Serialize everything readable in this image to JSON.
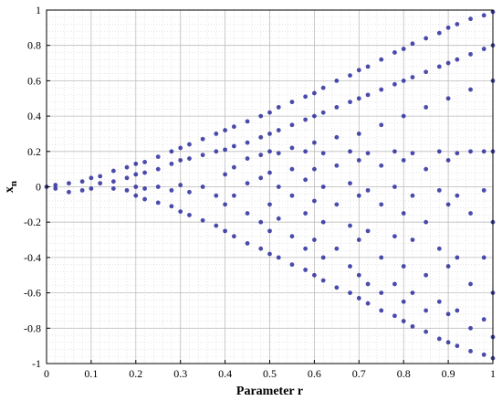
{
  "chart_data": {
    "type": "scatter",
    "title": "",
    "xlabel": "Parameter r",
    "ylabel_main": "x",
    "ylabel_sub": "n",
    "xlim": [
      0,
      1
    ],
    "ylim": [
      -1,
      1
    ],
    "x_ticks": [
      0,
      0.1,
      0.2,
      0.3,
      0.4,
      0.5,
      0.6,
      0.7,
      0.8,
      0.9,
      1
    ],
    "x_tick_labels": [
      "0",
      "0.1",
      "0.2",
      "0.3",
      "0.4",
      "0.5",
      "0.6",
      "0.7",
      "0.8",
      "0.9",
      "1"
    ],
    "y_ticks": [
      -1,
      -0.8,
      -0.6,
      -0.4,
      -0.2,
      0,
      0.2,
      0.4,
      0.6,
      0.8,
      1
    ],
    "y_tick_labels": [
      "-1",
      "-0.8",
      "-0.6",
      "-0.4",
      "-0.2",
      "0",
      "0.2",
      "0.4",
      "0.6",
      "0.8",
      "1"
    ],
    "grid": true,
    "minor_grid": true,
    "marker_color": "#2b2b9e",
    "series": [
      {
        "values": [
          [
            0.0,
            0.0
          ],
          [
            0.02,
            0.01
          ],
          [
            0.02,
            -0.01
          ],
          [
            0.05,
            0.02
          ],
          [
            0.05,
            -0.03
          ],
          [
            0.08,
            0.03
          ],
          [
            0.08,
            -0.02
          ],
          [
            0.1,
            0.05
          ],
          [
            0.1,
            -0.01
          ],
          [
            0.12,
            0.06
          ],
          [
            0.12,
            0.02
          ],
          [
            0.15,
            0.09
          ],
          [
            0.15,
            0.03
          ],
          [
            0.15,
            -0.01
          ],
          [
            0.18,
            0.11
          ],
          [
            0.18,
            0.05
          ],
          [
            0.18,
            -0.02
          ],
          [
            0.2,
            0.13
          ],
          [
            0.2,
            0.07
          ],
          [
            0.2,
            0.0
          ],
          [
            0.2,
            -0.05
          ],
          [
            0.22,
            0.14
          ],
          [
            0.22,
            0.08
          ],
          [
            0.22,
            -0.01
          ],
          [
            0.22,
            -0.07
          ],
          [
            0.25,
            0.17
          ],
          [
            0.25,
            0.1
          ],
          [
            0.25,
            0.0
          ],
          [
            0.25,
            -0.09
          ],
          [
            0.28,
            0.2
          ],
          [
            0.28,
            0.13
          ],
          [
            0.28,
            -0.02
          ],
          [
            0.28,
            -0.11
          ],
          [
            0.3,
            0.22
          ],
          [
            0.3,
            0.15
          ],
          [
            0.3,
            0.01
          ],
          [
            0.3,
            -0.14
          ],
          [
            0.32,
            0.24
          ],
          [
            0.32,
            0.16
          ],
          [
            0.32,
            -0.03
          ],
          [
            0.32,
            -0.16
          ],
          [
            0.35,
            0.27
          ],
          [
            0.35,
            0.18
          ],
          [
            0.35,
            0.0
          ],
          [
            0.35,
            -0.19
          ],
          [
            0.38,
            0.3
          ],
          [
            0.38,
            0.2
          ],
          [
            0.38,
            -0.05
          ],
          [
            0.38,
            -0.22
          ],
          [
            0.4,
            0.32
          ],
          [
            0.4,
            0.21
          ],
          [
            0.4,
            0.07
          ],
          [
            0.4,
            -0.1
          ],
          [
            0.4,
            -0.25
          ],
          [
            0.42,
            0.34
          ],
          [
            0.42,
            0.23
          ],
          [
            0.42,
            0.11
          ],
          [
            0.42,
            -0.05
          ],
          [
            0.42,
            -0.28
          ],
          [
            0.45,
            0.37
          ],
          [
            0.45,
            0.25
          ],
          [
            0.45,
            0.16
          ],
          [
            0.45,
            0.02
          ],
          [
            0.45,
            -0.15
          ],
          [
            0.45,
            -0.32
          ],
          [
            0.48,
            0.4
          ],
          [
            0.48,
            0.28
          ],
          [
            0.48,
            0.18
          ],
          [
            0.48,
            0.05
          ],
          [
            0.48,
            -0.2
          ],
          [
            0.48,
            -0.35
          ],
          [
            0.5,
            0.42
          ],
          [
            0.5,
            0.3
          ],
          [
            0.5,
            0.2
          ],
          [
            0.5,
            0.08
          ],
          [
            0.5,
            -0.1
          ],
          [
            0.5,
            -0.25
          ],
          [
            0.5,
            -0.38
          ],
          [
            0.52,
            0.45
          ],
          [
            0.52,
            0.32
          ],
          [
            0.52,
            0.19
          ],
          [
            0.52,
            0.0
          ],
          [
            0.52,
            -0.18
          ],
          [
            0.52,
            -0.4
          ],
          [
            0.55,
            0.48
          ],
          [
            0.55,
            0.35
          ],
          [
            0.55,
            0.22
          ],
          [
            0.55,
            0.1
          ],
          [
            0.55,
            -0.05
          ],
          [
            0.55,
            -0.28
          ],
          [
            0.55,
            -0.44
          ],
          [
            0.58,
            0.51
          ],
          [
            0.58,
            0.38
          ],
          [
            0.58,
            0.2
          ],
          [
            0.58,
            0.04
          ],
          [
            0.58,
            -0.15
          ],
          [
            0.58,
            -0.35
          ],
          [
            0.58,
            -0.47
          ],
          [
            0.6,
            0.53
          ],
          [
            0.6,
            0.4
          ],
          [
            0.6,
            0.25
          ],
          [
            0.6,
            0.1
          ],
          [
            0.6,
            -0.08
          ],
          [
            0.6,
            -0.3
          ],
          [
            0.6,
            -0.5
          ],
          [
            0.62,
            0.56
          ],
          [
            0.62,
            0.42
          ],
          [
            0.62,
            0.19
          ],
          [
            0.62,
            0.0
          ],
          [
            0.62,
            -0.2
          ],
          [
            0.62,
            -0.4
          ],
          [
            0.62,
            -0.53
          ],
          [
            0.65,
            0.6
          ],
          [
            0.65,
            0.45
          ],
          [
            0.65,
            0.28
          ],
          [
            0.65,
            0.12
          ],
          [
            0.65,
            -0.1
          ],
          [
            0.65,
            -0.35
          ],
          [
            0.65,
            -0.57
          ],
          [
            0.68,
            0.63
          ],
          [
            0.68,
            0.48
          ],
          [
            0.68,
            0.2
          ],
          [
            0.68,
            0.02
          ],
          [
            0.68,
            -0.22
          ],
          [
            0.68,
            -0.45
          ],
          [
            0.68,
            -0.6
          ],
          [
            0.7,
            0.66
          ],
          [
            0.7,
            0.5
          ],
          [
            0.7,
            0.3
          ],
          [
            0.7,
            0.15
          ],
          [
            0.7,
            -0.05
          ],
          [
            0.7,
            -0.3
          ],
          [
            0.7,
            -0.5
          ],
          [
            0.7,
            -0.63
          ],
          [
            0.72,
            0.68
          ],
          [
            0.72,
            0.52
          ],
          [
            0.72,
            0.19
          ],
          [
            0.72,
            -0.02
          ],
          [
            0.72,
            -0.25
          ],
          [
            0.72,
            -0.55
          ],
          [
            0.72,
            -0.66
          ],
          [
            0.75,
            0.72
          ],
          [
            0.75,
            0.55
          ],
          [
            0.75,
            0.35
          ],
          [
            0.75,
            0.12
          ],
          [
            0.75,
            -0.1
          ],
          [
            0.75,
            -0.4
          ],
          [
            0.75,
            -0.6
          ],
          [
            0.75,
            -0.7
          ],
          [
            0.78,
            0.76
          ],
          [
            0.78,
            0.58
          ],
          [
            0.78,
            0.2
          ],
          [
            0.78,
            0.0
          ],
          [
            0.78,
            -0.28
          ],
          [
            0.78,
            -0.55
          ],
          [
            0.78,
            -0.73
          ],
          [
            0.8,
            0.78
          ],
          [
            0.8,
            0.6
          ],
          [
            0.8,
            0.4
          ],
          [
            0.8,
            0.15
          ],
          [
            0.8,
            -0.15
          ],
          [
            0.8,
            -0.45
          ],
          [
            0.8,
            -0.65
          ],
          [
            0.8,
            -0.76
          ],
          [
            0.82,
            0.81
          ],
          [
            0.82,
            0.62
          ],
          [
            0.82,
            0.19
          ],
          [
            0.82,
            -0.05
          ],
          [
            0.82,
            -0.3
          ],
          [
            0.82,
            -0.6
          ],
          [
            0.82,
            -0.79
          ],
          [
            0.85,
            0.84
          ],
          [
            0.85,
            0.65
          ],
          [
            0.85,
            0.45
          ],
          [
            0.85,
            0.1
          ],
          [
            0.85,
            -0.2
          ],
          [
            0.85,
            -0.5
          ],
          [
            0.85,
            -0.7
          ],
          [
            0.85,
            -0.82
          ],
          [
            0.88,
            0.87
          ],
          [
            0.88,
            0.68
          ],
          [
            0.88,
            0.2
          ],
          [
            0.88,
            -0.02
          ],
          [
            0.88,
            -0.35
          ],
          [
            0.88,
            -0.65
          ],
          [
            0.88,
            -0.86
          ],
          [
            0.9,
            0.9
          ],
          [
            0.9,
            0.7
          ],
          [
            0.9,
            0.5
          ],
          [
            0.9,
            0.15
          ],
          [
            0.9,
            -0.1
          ],
          [
            0.9,
            -0.45
          ],
          [
            0.9,
            -0.72
          ],
          [
            0.9,
            -0.88
          ],
          [
            0.92,
            0.92
          ],
          [
            0.92,
            0.72
          ],
          [
            0.92,
            0.19
          ],
          [
            0.92,
            -0.05
          ],
          [
            0.92,
            -0.4
          ],
          [
            0.92,
            -0.7
          ],
          [
            0.92,
            -0.9
          ],
          [
            0.95,
            0.95
          ],
          [
            0.95,
            0.75
          ],
          [
            0.95,
            0.55
          ],
          [
            0.95,
            0.2
          ],
          [
            0.95,
            -0.15
          ],
          [
            0.95,
            -0.55
          ],
          [
            0.95,
            -0.8
          ],
          [
            0.95,
            -0.93
          ],
          [
            0.98,
            0.97
          ],
          [
            0.98,
            0.78
          ],
          [
            0.98,
            0.2
          ],
          [
            0.98,
            -0.02
          ],
          [
            0.98,
            -0.4
          ],
          [
            0.98,
            -0.75
          ],
          [
            0.98,
            -0.95
          ],
          [
            1.0,
            0.99
          ],
          [
            1.0,
            0.8
          ],
          [
            1.0,
            0.6
          ],
          [
            1.0,
            0.2
          ],
          [
            1.0,
            -0.2
          ],
          [
            1.0,
            -0.6
          ],
          [
            1.0,
            -0.85
          ],
          [
            1.0,
            -0.97
          ]
        ]
      }
    ]
  }
}
